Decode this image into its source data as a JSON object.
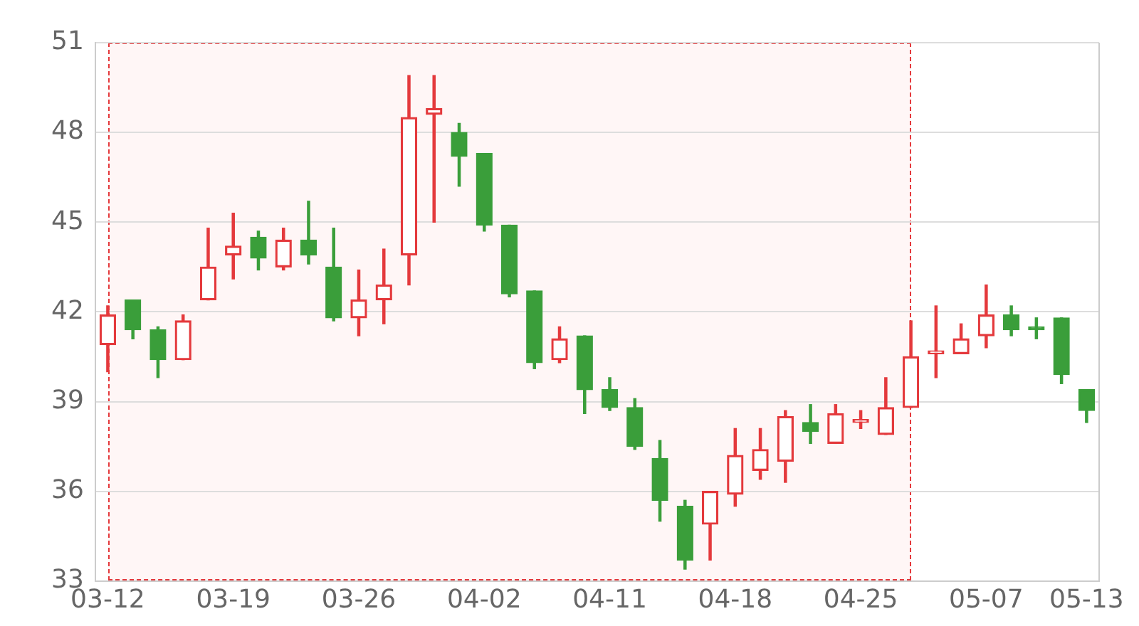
{
  "chart_data": {
    "type": "candlestick",
    "categories": [
      "03-12",
      null,
      null,
      null,
      null,
      "03-19",
      null,
      null,
      null,
      null,
      "03-26",
      null,
      null,
      null,
      null,
      "04-02",
      null,
      null,
      null,
      null,
      "04-11",
      null,
      null,
      null,
      null,
      "04-18",
      null,
      null,
      null,
      null,
      "04-25",
      null,
      null,
      null,
      null,
      "05-07",
      null,
      null,
      null,
      "05-13"
    ],
    "series": [
      {
        "colors": [
          "#e4393c",
          "#3a9e3a",
          "#3a9e3a",
          "#e4393c",
          "#e4393c",
          "#e4393c",
          "#3a9e3a",
          "#e4393c",
          "#3a9e3a",
          "#3a9e3a",
          "#e4393c",
          "#e4393c",
          "#e4393c",
          "#e4393c",
          "#3a9e3a",
          "#3a9e3a",
          "#3a9e3a",
          "#3a9e3a",
          "#e4393c",
          "#3a9e3a",
          "#3a9e3a",
          "#3a9e3a",
          "#3a9e3a",
          "#3a9e3a",
          "#e4393c",
          "#e4393c",
          "#e4393c",
          "#e4393c",
          "#3a9e3a",
          "#e4393c",
          "#e4393c",
          "#e4393c",
          "#e4393c",
          "#e4393c",
          "#e4393c",
          "#e4393c",
          "#3a9e3a",
          "#3a9e3a",
          "#3a9e3a",
          "#3a9e3a"
        ],
        "ohlc": [
          [
            40.9,
            42.2,
            40.0,
            41.9
          ],
          [
            42.4,
            42.4,
            41.1,
            41.4
          ],
          [
            41.4,
            41.5,
            39.8,
            40.4
          ],
          [
            40.4,
            41.9,
            40.4,
            41.7
          ],
          [
            42.4,
            44.8,
            42.4,
            43.5
          ],
          [
            43.9,
            45.3,
            43.1,
            44.2
          ],
          [
            44.5,
            44.7,
            43.4,
            43.8
          ],
          [
            43.5,
            44.8,
            43.4,
            44.4
          ],
          [
            44.4,
            45.7,
            43.6,
            43.9
          ],
          [
            43.5,
            44.8,
            41.7,
            41.8
          ],
          [
            41.8,
            43.4,
            41.2,
            42.4
          ],
          [
            42.4,
            44.1,
            41.6,
            42.9
          ],
          [
            43.9,
            49.9,
            42.9,
            48.5
          ],
          [
            48.6,
            49.9,
            45.0,
            48.8
          ],
          [
            48.0,
            48.3,
            46.2,
            47.2
          ],
          [
            47.3,
            47.3,
            44.7,
            44.9
          ],
          [
            44.9,
            44.9,
            42.5,
            42.6
          ],
          [
            42.7,
            42.7,
            40.1,
            40.3
          ],
          [
            40.4,
            41.5,
            40.3,
            41.1
          ],
          [
            41.2,
            41.2,
            38.6,
            39.4
          ],
          [
            39.4,
            39.8,
            38.7,
            38.8
          ],
          [
            38.8,
            39.1,
            37.4,
            37.5
          ],
          [
            37.1,
            37.7,
            35.0,
            35.7
          ],
          [
            35.5,
            35.7,
            33.4,
            33.7
          ],
          [
            34.9,
            36.0,
            33.7,
            36.0
          ],
          [
            35.9,
            38.1,
            35.5,
            37.2
          ],
          [
            36.7,
            38.1,
            36.4,
            37.4
          ],
          [
            37.0,
            38.7,
            36.3,
            38.5
          ],
          [
            38.3,
            38.9,
            37.6,
            38.0
          ],
          [
            37.6,
            38.9,
            37.6,
            38.6
          ],
          [
            38.3,
            38.7,
            38.1,
            38.4
          ],
          [
            37.9,
            39.8,
            37.9,
            38.8
          ],
          [
            38.8,
            41.7,
            38.8,
            40.5
          ],
          [
            40.6,
            42.2,
            39.8,
            40.7
          ],
          [
            40.6,
            41.6,
            40.6,
            41.1
          ],
          [
            41.2,
            42.9,
            40.8,
            41.9
          ],
          [
            41.9,
            42.2,
            41.2,
            41.4
          ],
          [
            41.5,
            41.8,
            41.1,
            41.4
          ],
          [
            41.8,
            41.8,
            39.6,
            39.9
          ],
          [
            39.4,
            39.4,
            38.3,
            38.7
          ]
        ]
      }
    ],
    "ylim": [
      33,
      51
    ],
    "yticks": [
      33,
      36,
      39,
      42,
      45,
      48,
      51
    ],
    "grid": "y"
  }
}
